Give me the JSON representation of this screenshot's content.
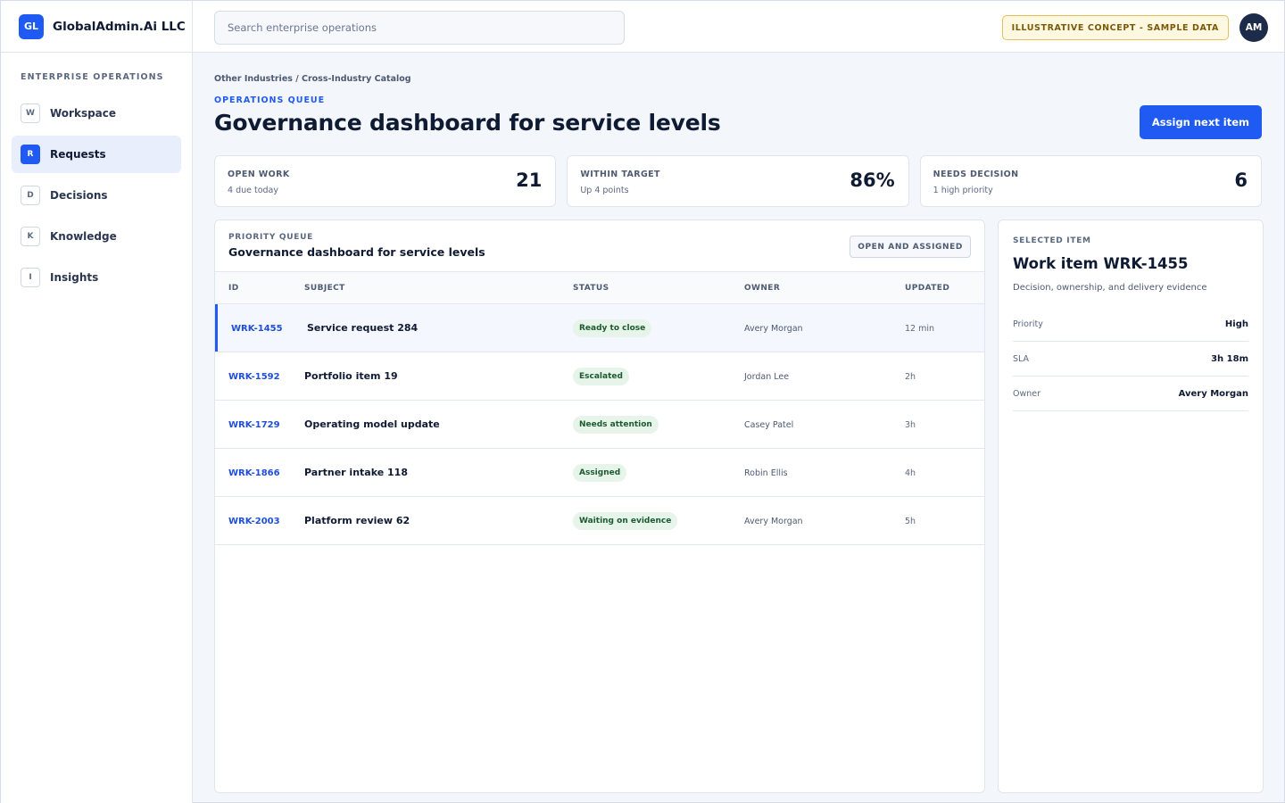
{
  "brand": {
    "logo": "GL",
    "name": "GlobalAdmin.Ai LLC"
  },
  "sidebar": {
    "section_label": "ENTERPRISE OPERATIONS",
    "items": [
      {
        "badge": "W",
        "label": "Workspace"
      },
      {
        "badge": "R",
        "label": "Requests"
      },
      {
        "badge": "D",
        "label": "Decisions"
      },
      {
        "badge": "K",
        "label": "Knowledge"
      },
      {
        "badge": "I",
        "label": "Insights"
      }
    ]
  },
  "topbar": {
    "search_placeholder": "Search enterprise operations",
    "concept_badge": "ILLUSTRATIVE CONCEPT - SAMPLE DATA",
    "avatar_initials": "AM"
  },
  "header": {
    "breadcrumb": "Other Industries / Cross-Industry Catalog",
    "eyebrow": "OPERATIONS QUEUE",
    "title": "Governance dashboard for service levels",
    "primary_action": "Assign next item"
  },
  "stats": [
    {
      "label": "OPEN WORK",
      "sub": "4 due today",
      "value": "21"
    },
    {
      "label": "WITHIN TARGET",
      "sub": "Up 4 points",
      "value": "86%"
    },
    {
      "label": "NEEDS DECISION",
      "sub": "1 high priority",
      "value": "6"
    }
  ],
  "queue": {
    "eyebrow": "PRIORITY QUEUE",
    "title": "Governance dashboard for service levels",
    "filter": "OPEN AND ASSIGNED",
    "columns": [
      "ID",
      "SUBJECT",
      "STATUS",
      "OWNER",
      "UPDATED"
    ],
    "rows": [
      {
        "id": "WRK-1455",
        "subject": "Service request 284",
        "status": "Ready to close",
        "owner": "Avery Morgan",
        "updated": "12 min"
      },
      {
        "id": "WRK-1592",
        "subject": "Portfolio item 19",
        "status": "Escalated",
        "owner": "Jordan Lee",
        "updated": "2h"
      },
      {
        "id": "WRK-1729",
        "subject": "Operating model update",
        "status": "Needs attention",
        "owner": "Casey Patel",
        "updated": "3h"
      },
      {
        "id": "WRK-1866",
        "subject": "Partner intake 118",
        "status": "Assigned",
        "owner": "Robin Ellis",
        "updated": "4h"
      },
      {
        "id": "WRK-2003",
        "subject": "Platform review 62",
        "status": "Waiting on evidence",
        "owner": "Avery Morgan",
        "updated": "5h"
      }
    ]
  },
  "detail": {
    "eyebrow": "SELECTED ITEM",
    "title": "Work item WRK-1455",
    "description": "Decision, ownership, and delivery evidence",
    "fields": [
      {
        "key": "Priority",
        "value": "High"
      },
      {
        "key": "SLA",
        "value": "3h 18m"
      },
      {
        "key": "Owner",
        "value": "Avery Morgan"
      }
    ]
  },
  "colors": {
    "accent": "#1f5bf2",
    "status_pill_bg": "#e6f4ea",
    "status_pill_text": "#1d5a30",
    "badge_bg": "#fff8e1"
  }
}
